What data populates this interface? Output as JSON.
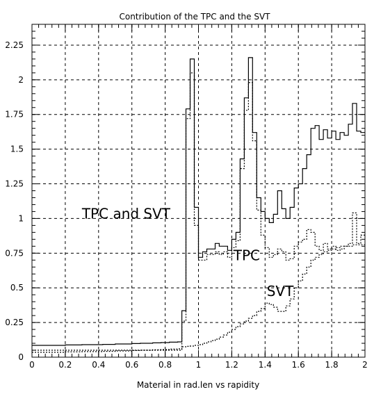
{
  "chart_data": {
    "type": "line",
    "title": "Contribution of the TPC and the SVT",
    "xlabel": "Material in rad.len vs rapidity",
    "ylabel": "",
    "xlim": [
      0,
      2
    ],
    "ylim": [
      0,
      2.4
    ],
    "grid": true,
    "x_ticks": [
      0,
      0.2,
      0.4,
      0.6,
      0.8,
      1,
      1.2,
      1.4,
      1.6,
      1.8,
      2
    ],
    "x_tick_labels": [
      "0",
      "0.2",
      "0.4",
      "0.6",
      "0.8",
      "1",
      "1.2",
      "1.4",
      "1.6",
      "1.8",
      "2"
    ],
    "y_ticks": [
      0,
      0.25,
      0.5,
      0.75,
      1,
      1.25,
      1.5,
      1.75,
      2,
      2.25
    ],
    "y_tick_labels": [
      "0",
      "0.25",
      "0.5",
      "0.75",
      "1",
      "1.25",
      "1.5",
      "1.75",
      "2",
      "2.25"
    ],
    "series": [
      {
        "name": "TPC and SVT",
        "style": "solid",
        "bin_width": 0.025,
        "values": [
          0.085,
          0.085,
          0.085,
          0.085,
          0.085,
          0.085,
          0.085,
          0.085,
          0.088,
          0.088,
          0.088,
          0.088,
          0.09,
          0.09,
          0.09,
          0.09,
          0.09,
          0.092,
          0.092,
          0.092,
          0.095,
          0.095,
          0.095,
          0.095,
          0.098,
          0.098,
          0.1,
          0.1,
          0.1,
          0.103,
          0.103,
          0.105,
          0.105,
          0.108,
          0.108,
          0.11,
          0.335,
          1.79,
          2.15,
          1.08,
          0.72,
          0.76,
          0.78,
          0.78,
          0.82,
          0.8,
          0.8,
          0.77,
          0.85,
          0.9,
          1.43,
          1.87,
          2.16,
          1.62,
          1.15,
          1.05,
          1.0,
          0.97,
          1.03,
          1.2,
          1.07,
          1.0,
          1.08,
          1.22,
          1.25,
          1.36,
          1.46,
          1.65,
          1.67,
          1.57,
          1.64,
          1.58,
          1.63,
          1.57,
          1.62,
          1.6,
          1.68,
          1.83,
          1.63,
          1.62
        ]
      },
      {
        "name": "TPC",
        "style": "dotted",
        "bin_width": 0.025,
        "values": [
          0.05,
          0.05,
          0.05,
          0.05,
          0.05,
          0.05,
          0.05,
          0.05,
          0.05,
          0.05,
          0.05,
          0.05,
          0.05,
          0.05,
          0.05,
          0.05,
          0.05,
          0.05,
          0.05,
          0.05,
          0.05,
          0.05,
          0.05,
          0.05,
          0.05,
          0.05,
          0.05,
          0.05,
          0.05,
          0.05,
          0.05,
          0.05,
          0.05,
          0.05,
          0.05,
          0.05,
          0.26,
          1.72,
          2.05,
          0.95,
          0.7,
          0.7,
          0.74,
          0.74,
          0.76,
          0.74,
          0.76,
          0.72,
          0.79,
          0.84,
          1.36,
          1.78,
          1.98,
          1.56,
          1.06,
          0.88,
          0.79,
          0.72,
          0.74,
          0.78,
          0.76,
          0.7,
          0.71,
          0.8,
          0.83,
          0.85,
          0.92,
          0.9,
          0.8,
          0.77,
          0.82,
          0.78,
          0.8,
          0.77,
          0.78,
          0.8,
          0.82,
          1.04,
          0.82,
          0.88
        ]
      },
      {
        "name": "SVT",
        "style": "dotted",
        "bin_width": 0.025,
        "values": [
          0.035,
          0.035,
          0.035,
          0.035,
          0.035,
          0.035,
          0.035,
          0.035,
          0.038,
          0.038,
          0.038,
          0.038,
          0.04,
          0.04,
          0.04,
          0.04,
          0.04,
          0.042,
          0.042,
          0.042,
          0.045,
          0.045,
          0.045,
          0.045,
          0.048,
          0.048,
          0.05,
          0.05,
          0.05,
          0.053,
          0.053,
          0.055,
          0.055,
          0.058,
          0.058,
          0.06,
          0.075,
          0.078,
          0.08,
          0.085,
          0.09,
          0.1,
          0.11,
          0.12,
          0.13,
          0.145,
          0.16,
          0.18,
          0.2,
          0.22,
          0.24,
          0.26,
          0.28,
          0.3,
          0.33,
          0.35,
          0.39,
          0.38,
          0.36,
          0.33,
          0.33,
          0.37,
          0.42,
          0.5,
          0.55,
          0.6,
          0.65,
          0.7,
          0.72,
          0.74,
          0.76,
          0.77,
          0.78,
          0.79,
          0.8,
          0.8,
          0.8,
          0.81,
          0.81,
          0.81
        ]
      }
    ],
    "annotations": [
      {
        "text": "TPC and SVT",
        "x": 0.3,
        "y": 1.0
      },
      {
        "text": "TPC",
        "x": 1.21,
        "y": 0.7
      },
      {
        "text": "SVT",
        "x": 1.41,
        "y": 0.44
      }
    ]
  }
}
